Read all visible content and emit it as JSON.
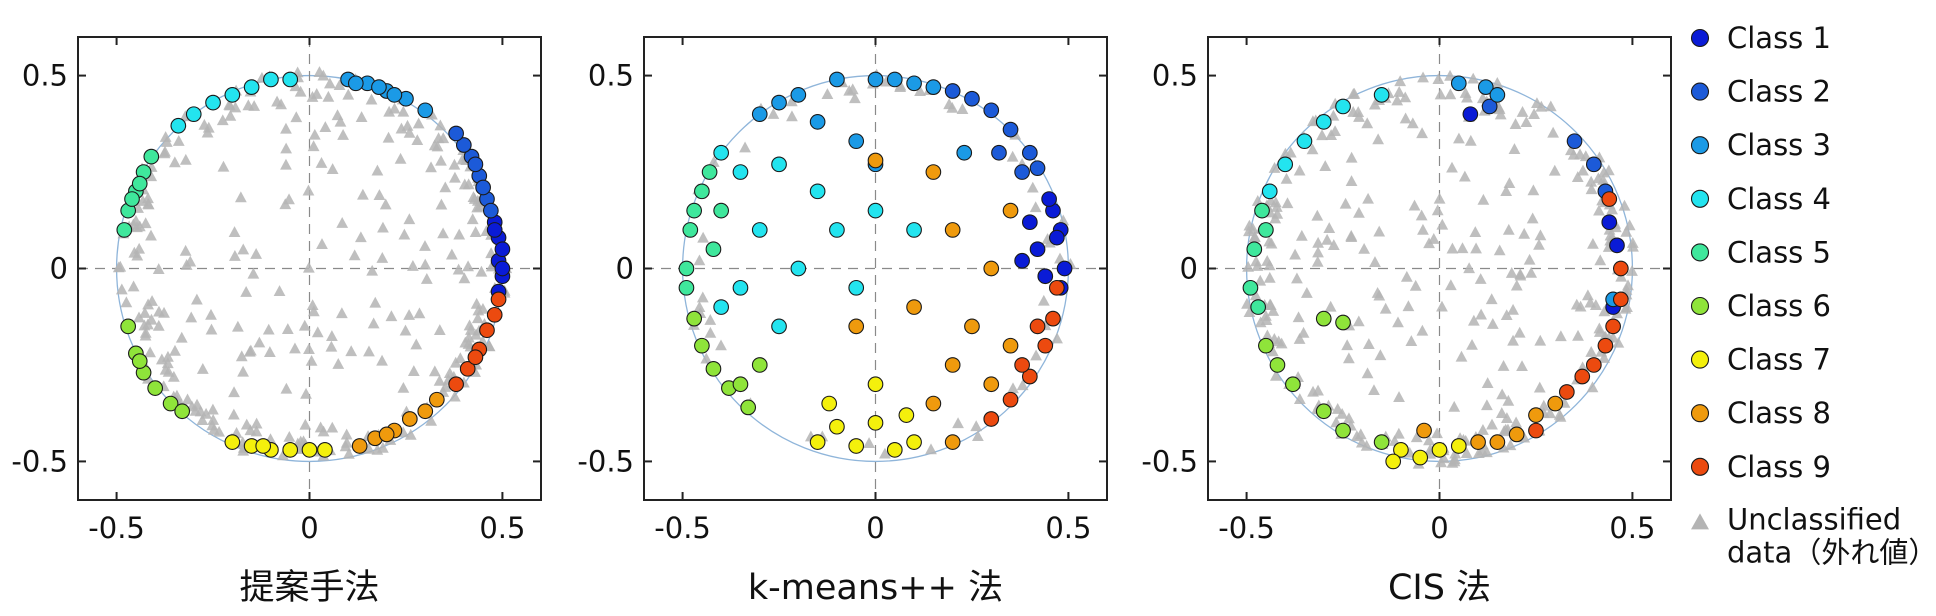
{
  "chart_data": [
    {
      "type": "scatter",
      "title": "提案手法",
      "xlim": [
        -0.6,
        0.6
      ],
      "ylim": [
        -0.6,
        0.6
      ],
      "x_ticks": [
        "-0.5",
        "0",
        "0.5"
      ],
      "y_ticks": [
        "0.5",
        "0",
        "-0.5"
      ],
      "grid": "dashed zero lines",
      "series": [
        {
          "name": "Class 1",
          "color": "#0a1bd6",
          "points": [
            [
              0.49,
              0.02
            ],
            [
              0.5,
              -0.02
            ],
            [
              0.49,
              0.08
            ],
            [
              0.48,
              0.12
            ],
            [
              0.5,
              0.05
            ],
            [
              0.49,
              -0.06
            ],
            [
              0.48,
              0.1
            ],
            [
              0.5,
              0.0
            ]
          ]
        },
        {
          "name": "Class 2",
          "color": "#1c5ad8",
          "points": [
            [
              0.46,
              0.18
            ],
            [
              0.44,
              0.24
            ],
            [
              0.42,
              0.29
            ],
            [
              0.4,
              0.32
            ],
            [
              0.38,
              0.35
            ],
            [
              0.45,
              0.21
            ],
            [
              0.43,
              0.27
            ],
            [
              0.47,
              0.15
            ]
          ]
        },
        {
          "name": "Class 3",
          "color": "#1b9ae6",
          "points": [
            [
              0.1,
              0.49
            ],
            [
              0.15,
              0.48
            ],
            [
              0.2,
              0.46
            ],
            [
              0.25,
              0.44
            ],
            [
              0.3,
              0.41
            ],
            [
              0.12,
              0.48
            ],
            [
              0.18,
              0.47
            ],
            [
              0.22,
              0.45
            ]
          ]
        },
        {
          "name": "Class 4",
          "color": "#23e4ef",
          "points": [
            [
              -0.1,
              0.49
            ],
            [
              -0.15,
              0.47
            ],
            [
              -0.2,
              0.45
            ],
            [
              -0.25,
              0.43
            ],
            [
              -0.3,
              0.4
            ],
            [
              -0.34,
              0.37
            ],
            [
              -0.05,
              0.49
            ]
          ]
        },
        {
          "name": "Class 5",
          "color": "#3fe79c",
          "points": [
            [
              -0.43,
              0.25
            ],
            [
              -0.45,
              0.2
            ],
            [
              -0.47,
              0.15
            ],
            [
              -0.48,
              0.1
            ],
            [
              -0.41,
              0.29
            ],
            [
              -0.44,
              0.22
            ],
            [
              -0.46,
              0.18
            ]
          ]
        },
        {
          "name": "Class 6",
          "color": "#8fe43a",
          "points": [
            [
              -0.47,
              -0.15
            ],
            [
              -0.45,
              -0.22
            ],
            [
              -0.43,
              -0.27
            ],
            [
              -0.4,
              -0.31
            ],
            [
              -0.36,
              -0.35
            ],
            [
              -0.33,
              -0.37
            ],
            [
              -0.44,
              -0.24
            ]
          ]
        },
        {
          "name": "Class 7",
          "color": "#f4f00c",
          "points": [
            [
              -0.2,
              -0.45
            ],
            [
              -0.15,
              -0.46
            ],
            [
              -0.1,
              -0.47
            ],
            [
              -0.05,
              -0.47
            ],
            [
              0.0,
              -0.47
            ],
            [
              0.04,
              -0.47
            ],
            [
              -0.12,
              -0.46
            ]
          ]
        },
        {
          "name": "Class 8",
          "color": "#ef9a0d",
          "points": [
            [
              0.13,
              -0.46
            ],
            [
              0.17,
              -0.44
            ],
            [
              0.22,
              -0.42
            ],
            [
              0.26,
              -0.39
            ],
            [
              0.3,
              -0.37
            ],
            [
              0.33,
              -0.34
            ],
            [
              0.2,
              -0.43
            ]
          ]
        },
        {
          "name": "Class 9",
          "color": "#ec4a0f",
          "points": [
            [
              0.38,
              -0.3
            ],
            [
              0.41,
              -0.26
            ],
            [
              0.44,
              -0.21
            ],
            [
              0.46,
              -0.16
            ],
            [
              0.48,
              -0.12
            ],
            [
              0.49,
              -0.08
            ],
            [
              0.43,
              -0.23
            ]
          ]
        }
      ]
    },
    {
      "type": "scatter",
      "title": "k-means++ 法",
      "xlim": [
        -0.6,
        0.6
      ],
      "ylim": [
        -0.6,
        0.6
      ],
      "x_ticks": [
        "-0.5",
        "0",
        "0.5"
      ],
      "y_ticks": [
        "0.5",
        "0",
        "-0.5"
      ],
      "grid": "dashed zero lines",
      "series": [
        {
          "name": "Class 1",
          "color": "#0a1bd6",
          "points": [
            [
              0.48,
              0.1
            ],
            [
              0.49,
              0.0
            ],
            [
              0.48,
              -0.05
            ],
            [
              0.46,
              0.15
            ],
            [
              0.42,
              0.05
            ],
            [
              0.4,
              0.12
            ],
            [
              0.44,
              -0.02
            ],
            [
              0.47,
              0.08
            ],
            [
              0.38,
              0.02
            ],
            [
              0.45,
              0.18
            ]
          ]
        },
        {
          "name": "Class 2",
          "color": "#1c5ad8",
          "points": [
            [
              0.3,
              0.41
            ],
            [
              0.35,
              0.36
            ],
            [
              0.4,
              0.3
            ],
            [
              0.42,
              0.26
            ],
            [
              0.25,
              0.44
            ],
            [
              0.2,
              0.46
            ],
            [
              0.32,
              0.3
            ],
            [
              0.38,
              0.25
            ]
          ]
        },
        {
          "name": "Class 3",
          "color": "#1b9ae6",
          "points": [
            [
              -0.1,
              0.49
            ],
            [
              0.0,
              0.49
            ],
            [
              0.1,
              0.48
            ],
            [
              -0.2,
              0.45
            ],
            [
              -0.3,
              0.4
            ],
            [
              0.15,
              0.47
            ],
            [
              0.05,
              0.49
            ],
            [
              -0.25,
              0.43
            ],
            [
              -0.15,
              0.38
            ],
            [
              -0.05,
              0.33
            ],
            [
              0.23,
              0.3
            ],
            [
              0.0,
              0.27
            ]
          ]
        },
        {
          "name": "Class 4",
          "color": "#23e4ef",
          "points": [
            [
              -0.4,
              0.3
            ],
            [
              -0.35,
              0.25
            ],
            [
              -0.25,
              0.27
            ],
            [
              -0.15,
              0.2
            ],
            [
              -0.1,
              0.1
            ],
            [
              -0.3,
              0.1
            ],
            [
              -0.2,
              0.0
            ],
            [
              -0.35,
              -0.05
            ],
            [
              -0.25,
              -0.15
            ],
            [
              -0.4,
              -0.1
            ],
            [
              0.0,
              0.15
            ],
            [
              0.1,
              0.1
            ],
            [
              -0.05,
              -0.05
            ]
          ]
        },
        {
          "name": "Class 5",
          "color": "#3fe79c",
          "points": [
            [
              -0.48,
              0.1
            ],
            [
              -0.47,
              0.15
            ],
            [
              -0.45,
              0.2
            ],
            [
              -0.43,
              0.25
            ],
            [
              -0.49,
              0.0
            ],
            [
              -0.49,
              -0.05
            ],
            [
              -0.4,
              0.15
            ],
            [
              -0.42,
              0.05
            ]
          ]
        },
        {
          "name": "Class 6",
          "color": "#8fe43a",
          "points": [
            [
              -0.45,
              -0.2
            ],
            [
              -0.42,
              -0.26
            ],
            [
              -0.38,
              -0.31
            ],
            [
              -0.33,
              -0.36
            ],
            [
              -0.47,
              -0.13
            ],
            [
              -0.3,
              -0.25
            ],
            [
              -0.35,
              -0.3
            ]
          ]
        },
        {
          "name": "Class 7",
          "color": "#f4f00c",
          "points": [
            [
              -0.15,
              -0.45
            ],
            [
              -0.05,
              -0.46
            ],
            [
              0.05,
              -0.47
            ],
            [
              0.1,
              -0.45
            ],
            [
              -0.1,
              -0.41
            ],
            [
              0.0,
              -0.4
            ],
            [
              -0.12,
              -0.35
            ],
            [
              0.0,
              -0.3
            ],
            [
              0.08,
              -0.38
            ]
          ]
        },
        {
          "name": "Class 8",
          "color": "#ef9a0d",
          "points": [
            [
              0.2,
              -0.45
            ],
            [
              0.15,
              -0.35
            ],
            [
              0.2,
              -0.25
            ],
            [
              0.25,
              -0.15
            ],
            [
              0.3,
              0.0
            ],
            [
              0.35,
              0.15
            ],
            [
              0.2,
              0.1
            ],
            [
              0.1,
              -0.1
            ],
            [
              -0.05,
              -0.15
            ],
            [
              0.3,
              -0.3
            ],
            [
              0.35,
              -0.2
            ],
            [
              0.0,
              0.28
            ],
            [
              0.15,
              0.25
            ]
          ]
        },
        {
          "name": "Class 9",
          "color": "#ec4a0f",
          "points": [
            [
              0.3,
              -0.39
            ],
            [
              0.35,
              -0.34
            ],
            [
              0.4,
              -0.28
            ],
            [
              0.44,
              -0.2
            ],
            [
              0.46,
              -0.13
            ],
            [
              0.47,
              -0.05
            ],
            [
              0.38,
              -0.25
            ],
            [
              0.42,
              -0.15
            ]
          ]
        }
      ]
    },
    {
      "type": "scatter",
      "title": "CIS 法",
      "xlim": [
        -0.6,
        0.6
      ],
      "ylim": [
        -0.6,
        0.6
      ],
      "x_ticks": [
        "-0.5",
        "0",
        "0.5"
      ],
      "y_ticks": [
        "0.5",
        "0",
        "-0.5"
      ],
      "grid": "dashed zero lines",
      "series": [
        {
          "name": "Class 1",
          "color": "#0a1bd6",
          "points": [
            [
              0.46,
              0.06
            ],
            [
              0.45,
              -0.1
            ],
            [
              0.08,
              0.4
            ],
            [
              0.44,
              0.12
            ]
          ]
        },
        {
          "name": "Class 2",
          "color": "#1c5ad8",
          "points": [
            [
              0.35,
              0.33
            ],
            [
              0.4,
              0.27
            ],
            [
              0.43,
              0.2
            ],
            [
              0.13,
              0.42
            ]
          ]
        },
        {
          "name": "Class 3",
          "color": "#1b9ae6",
          "points": [
            [
              0.05,
              0.48
            ],
            [
              0.12,
              0.47
            ],
            [
              0.15,
              0.45
            ],
            [
              0.45,
              -0.08
            ]
          ]
        },
        {
          "name": "Class 4",
          "color": "#23e4ef",
          "points": [
            [
              -0.3,
              0.38
            ],
            [
              -0.35,
              0.33
            ],
            [
              -0.25,
              0.42
            ],
            [
              -0.4,
              0.27
            ],
            [
              -0.44,
              0.2
            ],
            [
              -0.15,
              0.45
            ]
          ]
        },
        {
          "name": "Class 5",
          "color": "#3fe79c",
          "points": [
            [
              -0.46,
              0.15
            ],
            [
              -0.48,
              0.05
            ],
            [
              -0.49,
              -0.05
            ],
            [
              -0.47,
              -0.1
            ],
            [
              -0.45,
              0.1
            ]
          ]
        },
        {
          "name": "Class 6",
          "color": "#8fe43a",
          "points": [
            [
              -0.3,
              -0.13
            ],
            [
              -0.25,
              -0.14
            ],
            [
              -0.45,
              -0.2
            ],
            [
              -0.42,
              -0.25
            ],
            [
              -0.38,
              -0.3
            ],
            [
              -0.3,
              -0.37
            ],
            [
              -0.25,
              -0.42
            ],
            [
              -0.15,
              -0.45
            ]
          ]
        },
        {
          "name": "Class 7",
          "color": "#f4f00c",
          "points": [
            [
              -0.1,
              -0.47
            ],
            [
              0.0,
              -0.47
            ],
            [
              0.05,
              -0.46
            ],
            [
              -0.12,
              -0.5
            ],
            [
              -0.05,
              -0.49
            ]
          ]
        },
        {
          "name": "Class 8",
          "color": "#ef9a0d",
          "points": [
            [
              0.1,
              -0.45
            ],
            [
              0.2,
              -0.43
            ],
            [
              0.25,
              -0.38
            ],
            [
              0.3,
              -0.35
            ],
            [
              -0.04,
              -0.42
            ],
            [
              0.15,
              -0.45
            ]
          ]
        },
        {
          "name": "Class 9",
          "color": "#ec4a0f",
          "points": [
            [
              0.4,
              -0.25
            ],
            [
              0.43,
              -0.2
            ],
            [
              0.45,
              -0.15
            ],
            [
              0.47,
              -0.08
            ],
            [
              0.37,
              -0.28
            ],
            [
              0.33,
              -0.32
            ],
            [
              0.44,
              0.18
            ],
            [
              0.47,
              0.0
            ],
            [
              0.25,
              -0.42
            ]
          ]
        }
      ]
    }
  ],
  "legend": {
    "placement": "right",
    "items": [
      {
        "label": "Class 1",
        "color": "#0a1bd6",
        "marker": "circle"
      },
      {
        "label": "Class 2",
        "color": "#1c5ad8",
        "marker": "circle"
      },
      {
        "label": "Class 3",
        "color": "#1b9ae6",
        "marker": "circle"
      },
      {
        "label": "Class 4",
        "color": "#23e4ef",
        "marker": "circle"
      },
      {
        "label": "Class 5",
        "color": "#3fe79c",
        "marker": "circle"
      },
      {
        "label": "Class 6",
        "color": "#8fe43a",
        "marker": "circle"
      },
      {
        "label": "Class 7",
        "color": "#f4f00c",
        "marker": "circle"
      },
      {
        "label": "Class 8",
        "color": "#ef9a0d",
        "marker": "circle"
      },
      {
        "label": "Class 9",
        "color": "#ec4a0f",
        "marker": "circle"
      }
    ],
    "unclassified": {
      "line1": "Unclassified",
      "line2": "data（外れ値）",
      "color": "#b4b4b4",
      "marker": "triangle"
    }
  }
}
